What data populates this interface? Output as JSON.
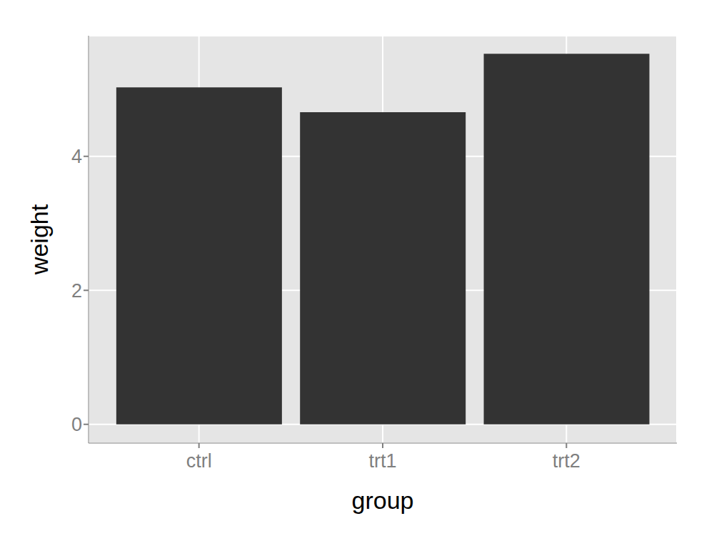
{
  "chart_data": {
    "type": "bar",
    "x_label": "group",
    "y_label": "weight",
    "categories": [
      "ctrl",
      "trt1",
      "trt2"
    ],
    "values": [
      5.03,
      4.66,
      5.53
    ],
    "color": "#333333",
    "ylim": [
      -0.28,
      5.8
    ],
    "yticks": [
      0,
      2,
      4
    ],
    "grid": true
  }
}
